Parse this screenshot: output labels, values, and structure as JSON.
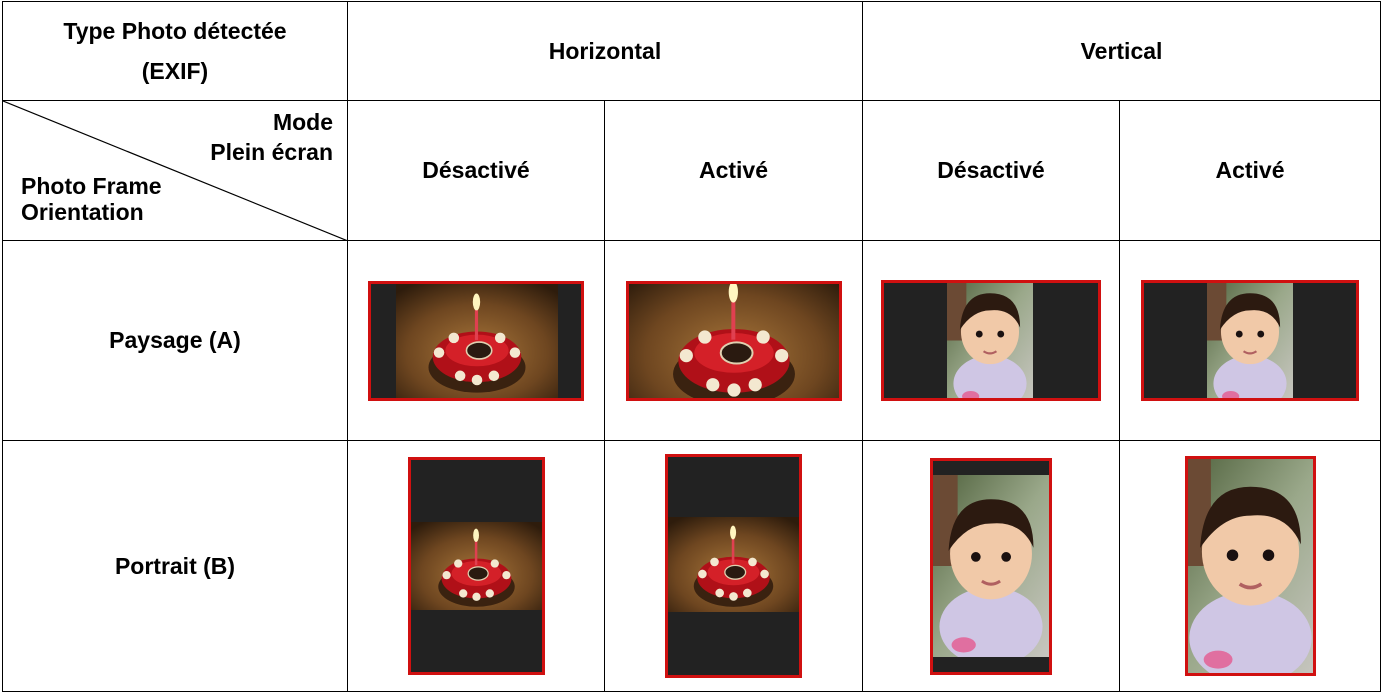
{
  "header": {
    "title_lines": [
      "Type Photo détectée",
      "(EXIF)"
    ],
    "groups": [
      "Horizontal",
      "Vertical"
    ]
  },
  "corner": {
    "top_lines": [
      "Mode",
      "Plein écran"
    ],
    "bottom_lines": [
      "Photo Frame",
      "Orientation"
    ]
  },
  "columns": [
    "Désactivé",
    "Activé",
    "Désactivé",
    "Activé"
  ],
  "rows": [
    "Paysage (A)",
    "Portrait (B)"
  ]
}
